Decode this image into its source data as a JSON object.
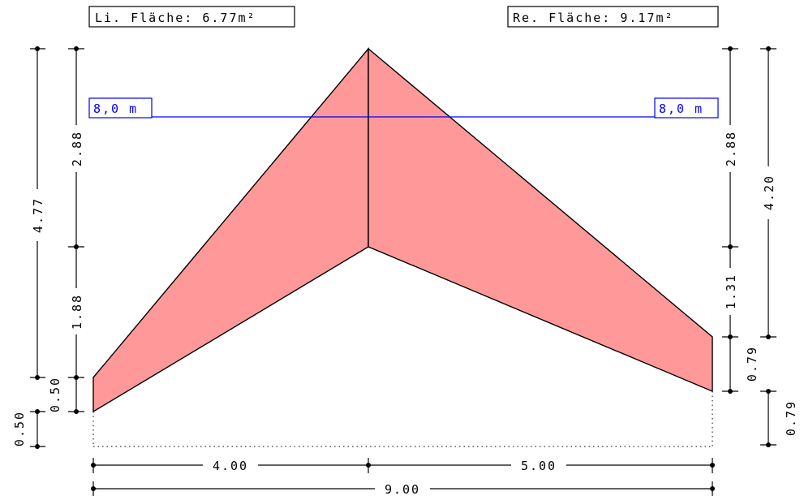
{
  "labels": {
    "left_area": "Li. Fläche: 6.77m²",
    "right_area": "Re. Fläche: 9.17m²",
    "left_level": "8,0 m",
    "right_level": "8,0 m"
  },
  "left_dims": {
    "outer_total": "4.77",
    "upper_segment": "2.88",
    "lower_segment": "1.88",
    "inner_bottom": "0.50",
    "outer_bottom": "0.50"
  },
  "right_dims": {
    "outer_total": "4.20",
    "upper_segment": "2.88",
    "lower_segment": "1.31",
    "inner_bottom": "0.79",
    "outer_bottom": "0.79"
  },
  "bottom_dims": {
    "left_span": "4.00",
    "right_span": "5.00",
    "total_span": "9.00"
  },
  "colors": {
    "fill": "#ff9999",
    "level_line": "#0000ff"
  }
}
